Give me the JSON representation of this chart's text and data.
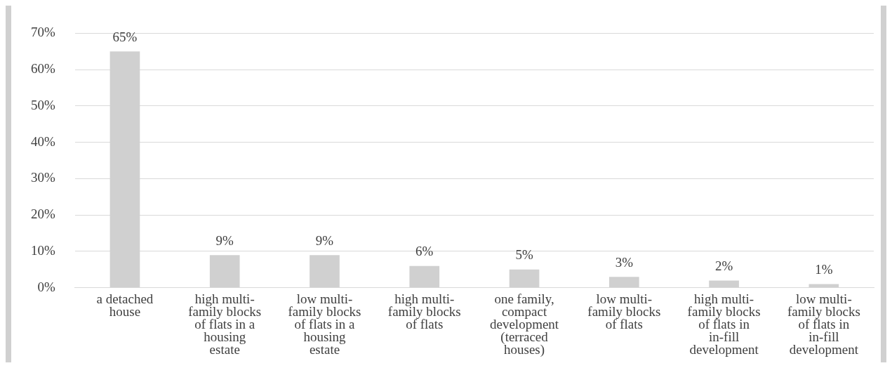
{
  "chart_data": {
    "type": "bar",
    "categories": [
      "a detached house",
      "high multi-family blocks of flats in a housing estate",
      "low multi-family blocks of flats in a housing estate",
      "high multi-family blocks of flats",
      "one family, compact development (terraced houses)",
      "low multi-family blocks of flats",
      "high multi-family blocks of flats in in-fill development",
      "low multi-family blocks of flats in in-fill development"
    ],
    "values": [
      65,
      9,
      9,
      6,
      5,
      3,
      2,
      1
    ],
    "value_labels": [
      "65%",
      "9%",
      "9%",
      "6%",
      "5%",
      "3%",
      "2%",
      "1%"
    ],
    "color": "#d0d0d0",
    "ylim": [
      0,
      70
    ],
    "yticks": [
      {
        "value": 0,
        "label": "0%"
      },
      {
        "value": 10,
        "label": "10%"
      },
      {
        "value": 20,
        "label": "20%"
      },
      {
        "value": 30,
        "label": "30%"
      },
      {
        "value": 40,
        "label": "40%"
      },
      {
        "value": 50,
        "label": "50%"
      },
      {
        "value": 60,
        "label": "60%"
      },
      {
        "value": 70,
        "label": "70%"
      }
    ],
    "grid": "y"
  }
}
